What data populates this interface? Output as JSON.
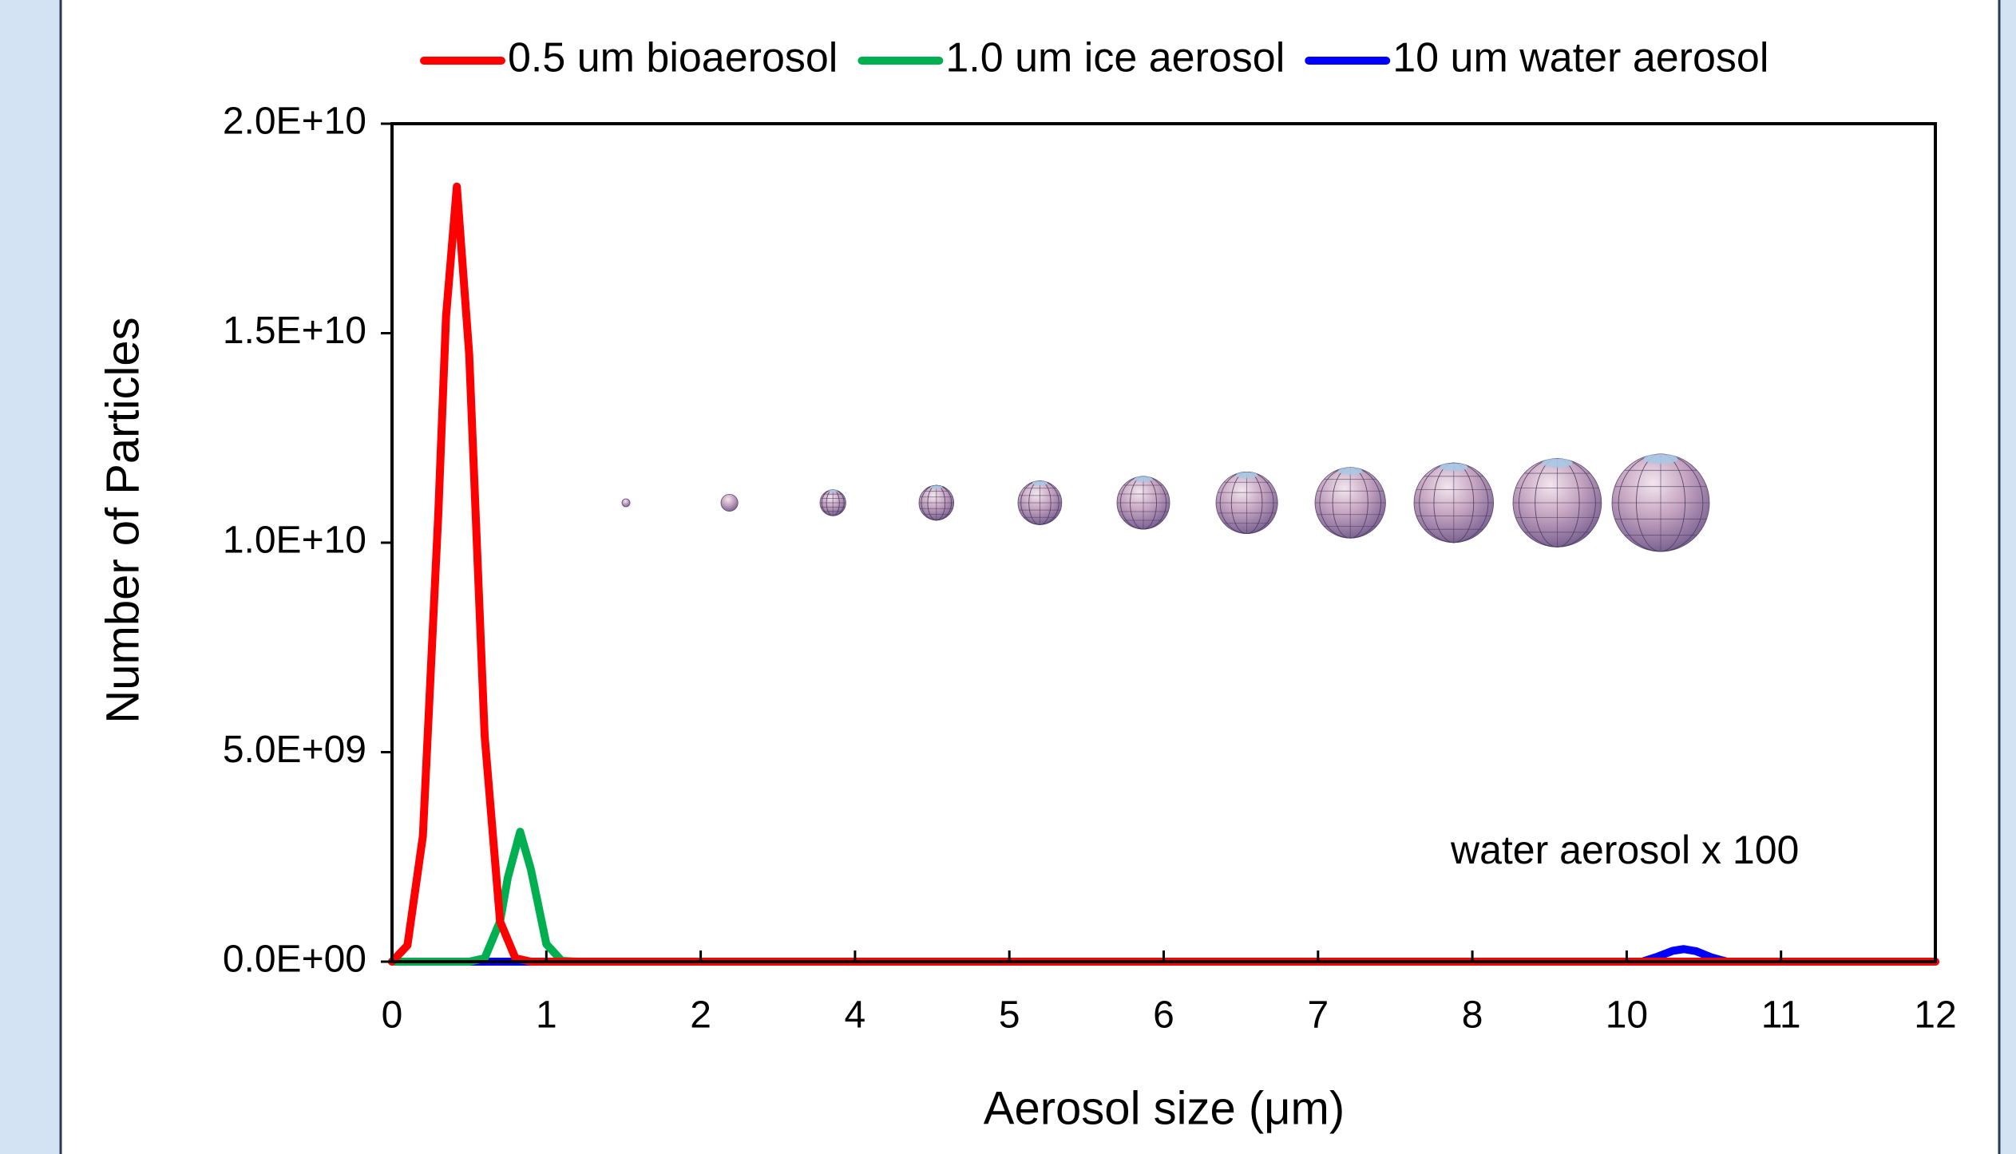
{
  "chart_data": {
    "type": "line",
    "xlabel": "Aerosol size (μm)",
    "ylabel": "Number of Particles",
    "annotation": "water aerosol x 100",
    "xlim": [
      0,
      12
    ],
    "xticks": [
      0,
      1,
      2,
      4,
      5,
      6,
      7,
      8,
      10,
      11,
      12
    ],
    "ylim": [
      0,
      20000000000
    ],
    "yticks": [
      {
        "value": 0,
        "label": "0.0E+00"
      },
      {
        "value": 5000000000,
        "label": "5.0E+09"
      },
      {
        "value": 10000000000,
        "label": "1.0E+10"
      },
      {
        "value": 15000000000,
        "label": "1.5E+10"
      },
      {
        "value": 20000000000,
        "label": "2.0E+10"
      }
    ],
    "grid": false,
    "legend": "top",
    "series": [
      {
        "name": "0.5 um bioaerosol",
        "color": "#ff0000",
        "x": [
          0,
          0.1,
          0.2,
          0.3,
          0.35,
          0.42,
          0.5,
          0.6,
          0.7,
          0.8,
          0.9,
          12
        ],
        "values": [
          0,
          390000000,
          3000000000,
          10700000000,
          15400000000,
          18500000000,
          14500000000,
          5400000000,
          960000000,
          80000000,
          0,
          0
        ]
      },
      {
        "name": "1.0 um ice aerosol",
        "color": "#00b050",
        "x": [
          0,
          0.5,
          0.6,
          0.7,
          0.75,
          0.83,
          0.9,
          1.0,
          1.1,
          1.2
        ],
        "values": [
          0,
          0,
          80000000,
          960000000,
          2000000000,
          3100000000,
          2200000000,
          420000000,
          20000000,
          0
        ]
      },
      {
        "name": "10 um water aerosol",
        "color": "#0000ff",
        "x": [
          0,
          10.1,
          10.2,
          10.3,
          10.37,
          10.45,
          10.55,
          10.65,
          12
        ],
        "values": [
          0,
          0,
          120000000,
          260000000,
          300000000,
          250000000,
          100000000,
          0,
          0
        ]
      }
    ]
  }
}
